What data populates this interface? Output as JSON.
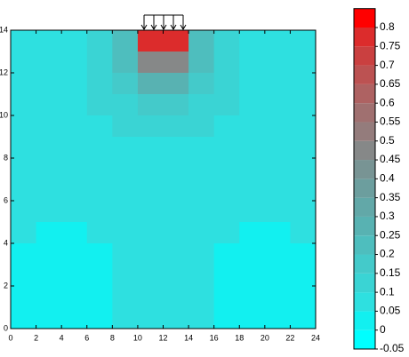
{
  "chart_data": {
    "type": "contour",
    "x": [
      1,
      3,
      5,
      7,
      9,
      11,
      13,
      15,
      17,
      19,
      21,
      23
    ],
    "y": [
      13.5,
      12.5,
      11.5,
      10.5,
      9.5,
      8.5,
      7.5,
      6.5,
      5.5,
      4.5,
      3.5,
      2.5,
      1.5,
      0.5
    ],
    "z": [
      [
        0.06,
        0.07,
        0.09,
        0.12,
        0.25,
        0.78,
        0.78,
        0.25,
        0.12,
        0.09,
        0.07,
        0.06
      ],
      [
        0.06,
        0.07,
        0.09,
        0.12,
        0.22,
        0.45,
        0.45,
        0.22,
        0.12,
        0.09,
        0.07,
        0.06
      ],
      [
        0.06,
        0.07,
        0.08,
        0.11,
        0.17,
        0.27,
        0.27,
        0.17,
        0.11,
        0.08,
        0.07,
        0.06
      ],
      [
        0.06,
        0.06,
        0.08,
        0.1,
        0.13,
        0.18,
        0.18,
        0.13,
        0.1,
        0.08,
        0.06,
        0.06
      ],
      [
        0.06,
        0.06,
        0.07,
        0.08,
        0.1,
        0.12,
        0.12,
        0.1,
        0.08,
        0.07,
        0.06,
        0.06
      ],
      [
        0.06,
        0.06,
        0.06,
        0.07,
        0.08,
        0.09,
        0.09,
        0.08,
        0.07,
        0.06,
        0.06,
        0.06
      ],
      [
        0.06,
        0.06,
        0.06,
        0.06,
        0.07,
        0.07,
        0.07,
        0.07,
        0.06,
        0.06,
        0.06,
        0.06
      ],
      [
        0.06,
        0.06,
        0.06,
        0.06,
        0.06,
        0.06,
        0.06,
        0.06,
        0.06,
        0.06,
        0.06,
        0.06
      ],
      [
        0.06,
        0.06,
        0.06,
        0.06,
        0.06,
        0.06,
        0.06,
        0.06,
        0.06,
        0.06,
        0.06,
        0.06
      ],
      [
        0.05,
        0.04,
        0.04,
        0.05,
        0.06,
        0.06,
        0.06,
        0.06,
        0.05,
        0.04,
        0.04,
        0.05
      ],
      [
        0.04,
        0.02,
        0.02,
        0.03,
        0.06,
        0.06,
        0.06,
        0.06,
        0.03,
        0.02,
        0.02,
        0.04
      ],
      [
        0.03,
        0.01,
        0.01,
        0.02,
        0.06,
        0.06,
        0.06,
        0.06,
        0.02,
        0.01,
        0.01,
        0.03
      ],
      [
        0.03,
        0.01,
        0.01,
        0.02,
        0.06,
        0.06,
        0.06,
        0.06,
        0.02,
        0.01,
        0.01,
        0.03
      ],
      [
        0.04,
        0.02,
        0.02,
        0.03,
        0.06,
        0.06,
        0.06,
        0.06,
        0.03,
        0.02,
        0.02,
        0.04
      ]
    ],
    "xlim": [
      0,
      24
    ],
    "ylim": [
      0,
      14
    ],
    "xticks": [
      0,
      2,
      4,
      6,
      8,
      10,
      12,
      14,
      16,
      18,
      20,
      22,
      24
    ],
    "yticks": [
      0,
      2,
      4,
      6,
      8,
      10,
      12,
      14
    ],
    "clim": [
      -0.05,
      0.85
    ],
    "cticks": [
      0.8,
      0.75,
      0.7,
      0.65,
      0.6,
      0.55,
      0.5,
      0.45,
      0.4,
      0.35,
      0.3,
      0.25,
      0.2,
      0.15,
      0.1,
      0.05,
      0,
      -0.05
    ],
    "colors": [
      "#00ffff",
      "#12f0f0",
      "#2ee0e0",
      "#3ad4d4",
      "#44caca",
      "#4ebebe",
      "#58b2b2",
      "#62a8a8",
      "#6c9e9e",
      "#789494",
      "#868888",
      "#947c7c",
      "#a07070",
      "#ae6262",
      "#bc5252",
      "#ca4040",
      "#dc2c2c",
      "#ff0000"
    ]
  }
}
